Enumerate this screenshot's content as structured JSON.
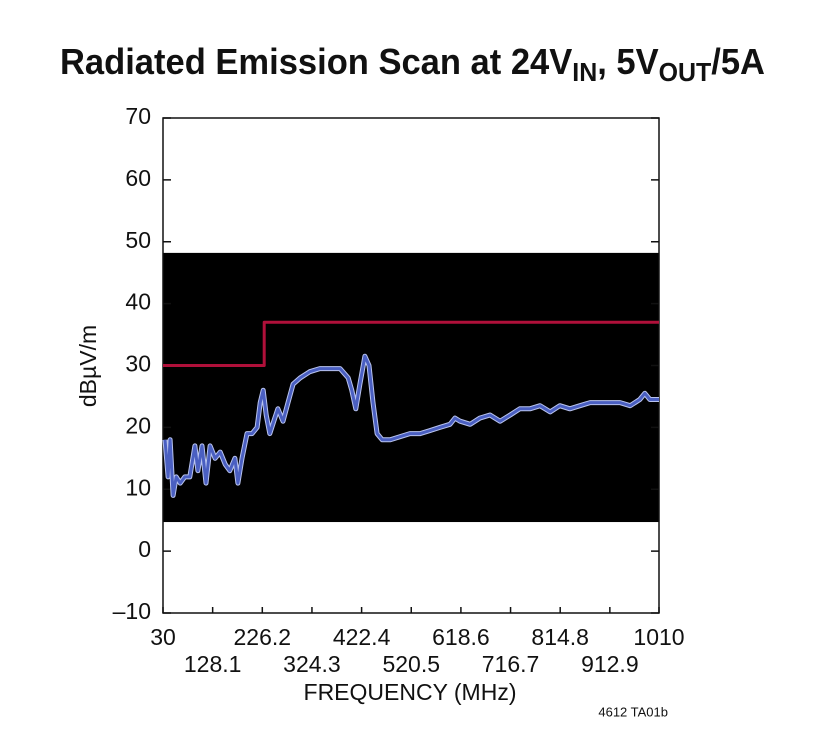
{
  "chart_data": {
    "type": "line",
    "title_parts": [
      "Radiated Emission Scan at 24V",
      "IN",
      ", 5V",
      "OUT",
      "/5A"
    ],
    "xlabel": "FREQUENCY (MHz)",
    "ylabel": "dBµV/m",
    "note": "4612 TA01b",
    "xlim": [
      30,
      1010
    ],
    "ylim": [
      -10,
      70
    ],
    "xticks": [
      30,
      128.1,
      226.2,
      324.3,
      422.4,
      520.5,
      618.6,
      716.7,
      814.8,
      912.9,
      1010
    ],
    "yticks": [
      {
        "value": -10,
        "label": "–10"
      },
      0,
      10,
      20,
      30,
      40,
      50,
      60,
      70
    ],
    "background_band": {
      "ylim": [
        4.7,
        48.2
      ],
      "color": "#000000"
    },
    "series": [
      {
        "color": "#b0103a",
        "x": [
          30,
          230,
          230,
          1010
        ],
        "values": [
          30,
          30,
          37,
          37
        ]
      },
      {
        "color": "#4a5fc1",
        "x": [
          34,
          40,
          44,
          50,
          56,
          64,
          73,
          83,
          93,
          99,
          107,
          115,
          123,
          133,
          143,
          153,
          162,
          172,
          178,
          186,
          196,
          206,
          216,
          222,
          228,
          234,
          241,
          249,
          257,
          267,
          277,
          287,
          301,
          320,
          340,
          360,
          380,
          396,
          403,
          411,
          419,
          429,
          437,
          445,
          453,
          463,
          479,
          498,
          518,
          538,
          558,
          577,
          597,
          607,
          617,
          637,
          656,
          676,
          696,
          716,
          735,
          755,
          775,
          795,
          814,
          834,
          854,
          874,
          893,
          913,
          933,
          953,
          972,
          982,
          992,
          1010
        ],
        "values": [
          18,
          12,
          18,
          9,
          12,
          11,
          12,
          12,
          17,
          13,
          17,
          11,
          17,
          15,
          16,
          14,
          13,
          15,
          11,
          15,
          19,
          19,
          20,
          24,
          26,
          22,
          19,
          21,
          23,
          21,
          24,
          27,
          28,
          29,
          29.5,
          29.5,
          29.5,
          28,
          26,
          23,
          27,
          31.5,
          30,
          24,
          19,
          18,
          18,
          18.5,
          19,
          19,
          19.5,
          20,
          20.5,
          21.5,
          21,
          20.5,
          21.5,
          22,
          21,
          22,
          23,
          23,
          23.5,
          22.5,
          23.5,
          23,
          23.5,
          24,
          24,
          24,
          24,
          23.5,
          24.5,
          25.5,
          24.5,
          24.5
        ]
      }
    ]
  }
}
